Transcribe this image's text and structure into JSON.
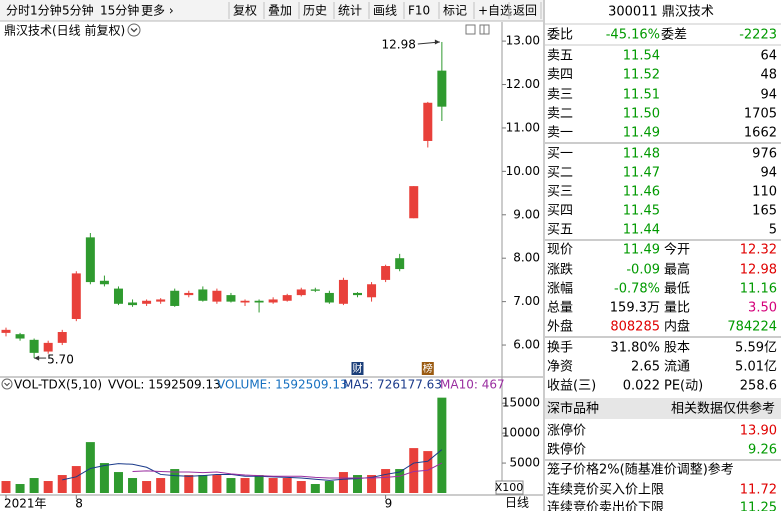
{
  "toolbar": [
    "分时",
    "1分钟",
    "5分钟",
    "15分钟",
    "更多 ›",
    "复权",
    "叠加",
    "历史",
    "统计",
    "画线",
    "F10",
    "标记",
    "+自选",
    "返回"
  ],
  "chart_data": {
    "type": "candlestick",
    "title": "鼎汉技术(日线 前复权)",
    "categories": [
      "2021年",
      null,
      null,
      null,
      null,
      "8",
      null,
      null,
      null,
      null,
      null,
      null,
      null,
      null,
      null,
      null,
      null,
      null,
      null,
      null,
      null,
      null,
      null,
      null,
      null,
      null,
      null,
      "9",
      null,
      null,
      null,
      null
    ],
    "open": [
      6.28,
      6.25,
      6.12,
      5.85,
      6.05,
      6.6,
      8.48,
      7.48,
      7.3,
      6.98,
      6.95,
      7.0,
      7.25,
      7.15,
      7.28,
      7.0,
      7.15,
      6.98,
      7.02,
      6.98,
      7.02,
      7.15,
      7.28,
      7.2,
      6.95,
      7.2,
      7.1,
      7.5,
      8.0,
      8.92,
      10.7,
      12.32
    ],
    "high": [
      6.4,
      6.28,
      6.15,
      6.1,
      6.35,
      7.7,
      8.58,
      7.6,
      7.35,
      7.05,
      7.05,
      7.08,
      7.3,
      7.25,
      7.35,
      7.3,
      7.2,
      7.05,
      7.05,
      7.1,
      7.18,
      7.32,
      7.32,
      7.25,
      7.55,
      7.22,
      7.45,
      7.85,
      8.1,
      9.66,
      11.6,
      12.98
    ],
    "low": [
      6.2,
      6.1,
      5.7,
      5.8,
      6.0,
      6.55,
      7.4,
      7.35,
      6.92,
      6.88,
      6.9,
      6.95,
      6.88,
      7.1,
      7.0,
      6.95,
      6.98,
      6.9,
      6.75,
      6.95,
      7.0,
      7.12,
      7.22,
      6.95,
      6.92,
      7.1,
      7.0,
      7.45,
      7.7,
      8.92,
      10.55,
      11.16
    ],
    "close": [
      6.35,
      6.15,
      5.82,
      6.05,
      6.3,
      7.65,
      7.45,
      7.4,
      6.95,
      6.92,
      7.02,
      7.05,
      6.9,
      7.2,
      7.02,
      7.25,
      7.0,
      7.02,
      6.98,
      7.05,
      7.15,
      7.28,
      7.25,
      6.98,
      7.5,
      7.15,
      7.4,
      7.82,
      7.75,
      9.66,
      11.58,
      11.49
    ],
    "up_color": "#e8403a",
    "down_color": "#2f9a2f",
    "ylim": [
      5.31,
      13.44
    ],
    "yticks": [
      {
        "value": 6,
        "label": "6.00"
      },
      {
        "value": 7,
        "label": "7.00"
      },
      {
        "value": 8,
        "label": "8.00"
      },
      {
        "value": 9,
        "label": "9.00"
      },
      {
        "value": 10,
        "label": "10.00"
      },
      {
        "value": 11,
        "label": "11.00"
      },
      {
        "value": 12,
        "label": "12.00"
      },
      {
        "value": 13,
        "label": "13.00"
      }
    ],
    "max_label": "12.98",
    "min_label": "5.70",
    "events": [
      null,
      null,
      null,
      null,
      null,
      null,
      null,
      null,
      null,
      null,
      null,
      null,
      null,
      null,
      null,
      null,
      null,
      null,
      null,
      null,
      null,
      null,
      null,
      null,
      null,
      "财",
      null,
      null,
      null,
      null,
      "榜",
      null
    ],
    "volume": {
      "header": [
        "VOL-TDX(5,10)",
        "VVOL: 1592509.13",
        "VOLUME: 1592509.13",
        "MA5: 726177.63",
        "MA10: 467"
      ],
      "values": [
        2000,
        1500,
        2500,
        2000,
        3000,
        4500,
        8500,
        5000,
        3500,
        2500,
        2000,
        2500,
        4000,
        3000,
        3000,
        3000,
        2500,
        2500,
        3000,
        2500,
        2500,
        2000,
        1500,
        2000,
        3500,
        3000,
        3000,
        4000,
        4000,
        7500,
        7000,
        15925
      ],
      "ma5": [
        null,
        null,
        null,
        null,
        2200,
        2700,
        4100,
        4600,
        4900,
        4800,
        4300,
        3100,
        2900,
        2800,
        2900,
        3100,
        3100,
        2800,
        2800,
        2700,
        2600,
        2500,
        2300,
        2100,
        2300,
        2400,
        2600,
        3100,
        3500,
        5000,
        5300,
        7250
      ],
      "ma10": [
        null,
        null,
        null,
        null,
        null,
        null,
        null,
        null,
        null,
        3600,
        3700,
        3600,
        3500,
        3500,
        3400,
        3500,
        3200,
        3000,
        2900,
        2800,
        2800,
        2800,
        2600,
        2500,
        2500,
        2500,
        2500,
        2600,
        2800,
        3600,
        3800,
        5000
      ],
      "ma5_color": "#1a3a8a",
      "ma10_color": "#9a2fa0",
      "ylim": [
        0,
        16200
      ],
      "yticks": [
        5000,
        10000,
        15000
      ],
      "unit": "X100"
    },
    "period": "日线"
  },
  "quote": {
    "header": "300011  鼎汉技术",
    "ratio": [
      "委比",
      "-45.16%",
      "委差",
      "-2223"
    ],
    "asks": [
      [
        "卖五",
        "11.54",
        "64"
      ],
      [
        "卖四",
        "11.52",
        "48"
      ],
      [
        "卖三",
        "11.51",
        "94"
      ],
      [
        "卖二",
        "11.50",
        "1705"
      ],
      [
        "卖一",
        "11.49",
        "1662"
      ]
    ],
    "bids": [
      [
        "买一",
        "11.48",
        "976"
      ],
      [
        "买二",
        "11.47",
        "94"
      ],
      [
        "买三",
        "11.46",
        "110"
      ],
      [
        "买四",
        "11.45",
        "165"
      ],
      [
        "买五",
        "11.44",
        "5"
      ]
    ],
    "stats": [
      [
        "现价",
        "11.49",
        "今开",
        "12.32"
      ],
      [
        "涨跌",
        "-0.09",
        "最高",
        "12.98"
      ],
      [
        "涨幅",
        "-0.78%",
        "最低",
        "11.16"
      ],
      [
        "总量",
        "159.3万",
        "量比",
        "3.50"
      ],
      [
        "外盘",
        "808285",
        "内盘",
        "784224"
      ]
    ],
    "finance": [
      [
        "换手",
        "31.80%",
        "股本",
        "5.59亿"
      ],
      [
        "净资",
        "2.65",
        "流通",
        "5.01亿"
      ],
      [
        "收益(三)",
        "0.022",
        "PE(动)",
        "258.6"
      ]
    ],
    "market": [
      "深市品种",
      "相关数据仅供参考"
    ],
    "limits": [
      [
        "涨停价",
        "13.90"
      ],
      [
        "跌停价",
        "9.26"
      ],
      [
        "笼子价格2%(随基准价调整)参考"
      ],
      [
        "连续竞价买入价上限",
        "11.72"
      ],
      [
        "连续竞价卖出价下限",
        "11.25"
      ]
    ]
  }
}
